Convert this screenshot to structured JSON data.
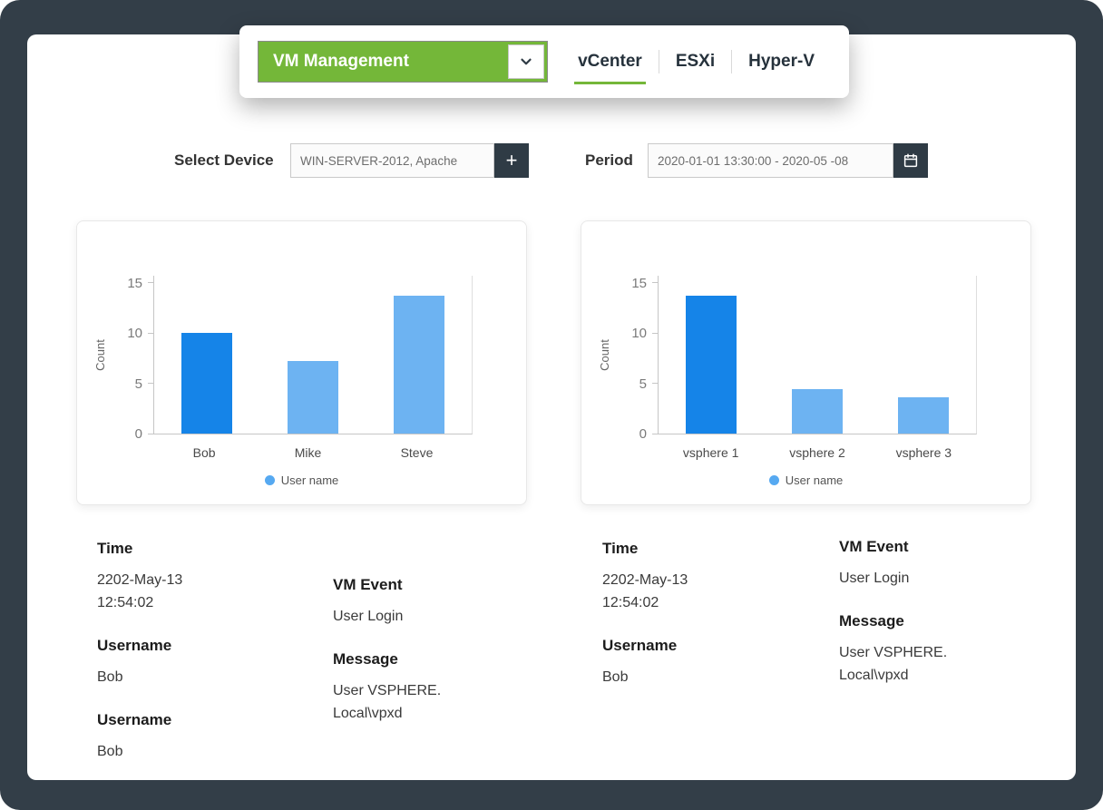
{
  "header": {
    "dropdown_label": "VM Management",
    "tabs": [
      {
        "label": "vCenter",
        "active": true
      },
      {
        "label": "ESXi",
        "active": false
      },
      {
        "label": "Hyper-V",
        "active": false
      }
    ]
  },
  "filters": {
    "device_label": "Select Device",
    "device_value": "WIN-SERVER-2012, Apache",
    "add_button": "+",
    "period_label": "Period",
    "period_value": "2020-01-01 13:30:00 - 2020-05 -08"
  },
  "chart_data": [
    {
      "type": "bar",
      "categories": [
        "Bob",
        "Mike",
        "Steve"
      ],
      "values": [
        10,
        7.2,
        13.7
      ],
      "bar_colors": [
        "#1584e8",
        "#6db3f2",
        "#6db3f2"
      ],
      "title": "",
      "xlabel": "",
      "ylabel": "Count",
      "yticks": [
        0,
        5,
        10,
        15
      ],
      "ylim": [
        0,
        15.8
      ],
      "legend": "User name",
      "legend_position": "bottom",
      "grid": false
    },
    {
      "type": "bar",
      "categories": [
        "vsphere 1",
        "vsphere 2",
        "vsphere 3"
      ],
      "values": [
        13.7,
        4.4,
        3.6
      ],
      "bar_colors": [
        "#1584e8",
        "#6db3f2",
        "#6db3f2"
      ],
      "title": "",
      "xlabel": "",
      "ylabel": "Count",
      "yticks": [
        0,
        5,
        10,
        15
      ],
      "ylim": [
        0,
        15.8
      ],
      "legend": "User name",
      "legend_position": "bottom",
      "grid": false
    }
  ],
  "details": {
    "col1": [
      {
        "label": "Time",
        "value": "2202-May-13 12:54:02"
      },
      {
        "label": "Username",
        "value": "Bob"
      },
      {
        "label": "Username",
        "value": "Bob"
      }
    ],
    "col2": [
      {
        "label": "VM Event",
        "value": "User Login"
      },
      {
        "label": "Message",
        "value": "User VSPHERE. Local\\vpxd"
      }
    ],
    "col3": [
      {
        "label": "Time",
        "value": "2202-May-13 12:54:02"
      },
      {
        "label": "Username",
        "value": "Bob"
      }
    ],
    "col4": [
      {
        "label": "VM Event",
        "value": "User Login"
      },
      {
        "label": "Message",
        "value": "User VSPHERE. Local\\vpxd"
      }
    ]
  },
  "colors": {
    "background": "#333e48",
    "accent_green": "#74b739",
    "dark_button": "#2f3b45",
    "bar_primary": "#1584e8",
    "bar_secondary": "#6db3f2",
    "legend_dot": "#56a9f1"
  }
}
